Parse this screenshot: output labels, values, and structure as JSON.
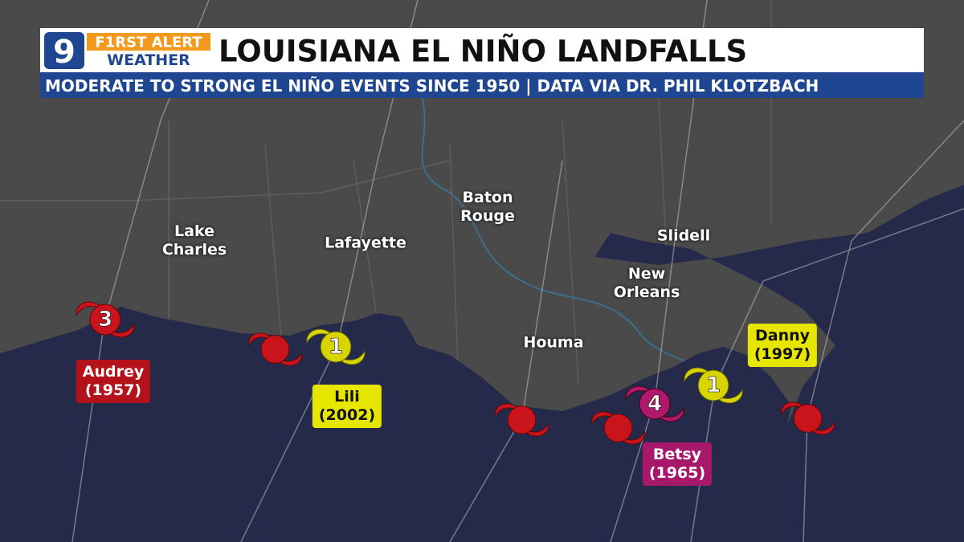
{
  "header": {
    "channel": "9",
    "brand": "F1RST ALERT",
    "brand_sub": "WEATHER",
    "title": "LOUISIANA EL NIÑO LANDFALLS",
    "subtitle": "MODERATE TO STRONG EL NIÑO EVENTS SINCE 1950 | DATA VIA DR. PHIL KLOTZBACH"
  },
  "cities": [
    "Lake Charles",
    "Lafayette",
    "Baton Rouge",
    "Slidell",
    "New Orleans",
    "Houma"
  ],
  "storms": [
    {
      "name": "Audrey",
      "year": "(1957)",
      "category": 3
    },
    {
      "name": "Lili",
      "year": "(2002)",
      "category": 1
    },
    {
      "name": "Betsy",
      "year": "(1965)",
      "category": 4
    },
    {
      "name": "Danny",
      "year": "(1997)",
      "category": 1
    }
  ]
}
